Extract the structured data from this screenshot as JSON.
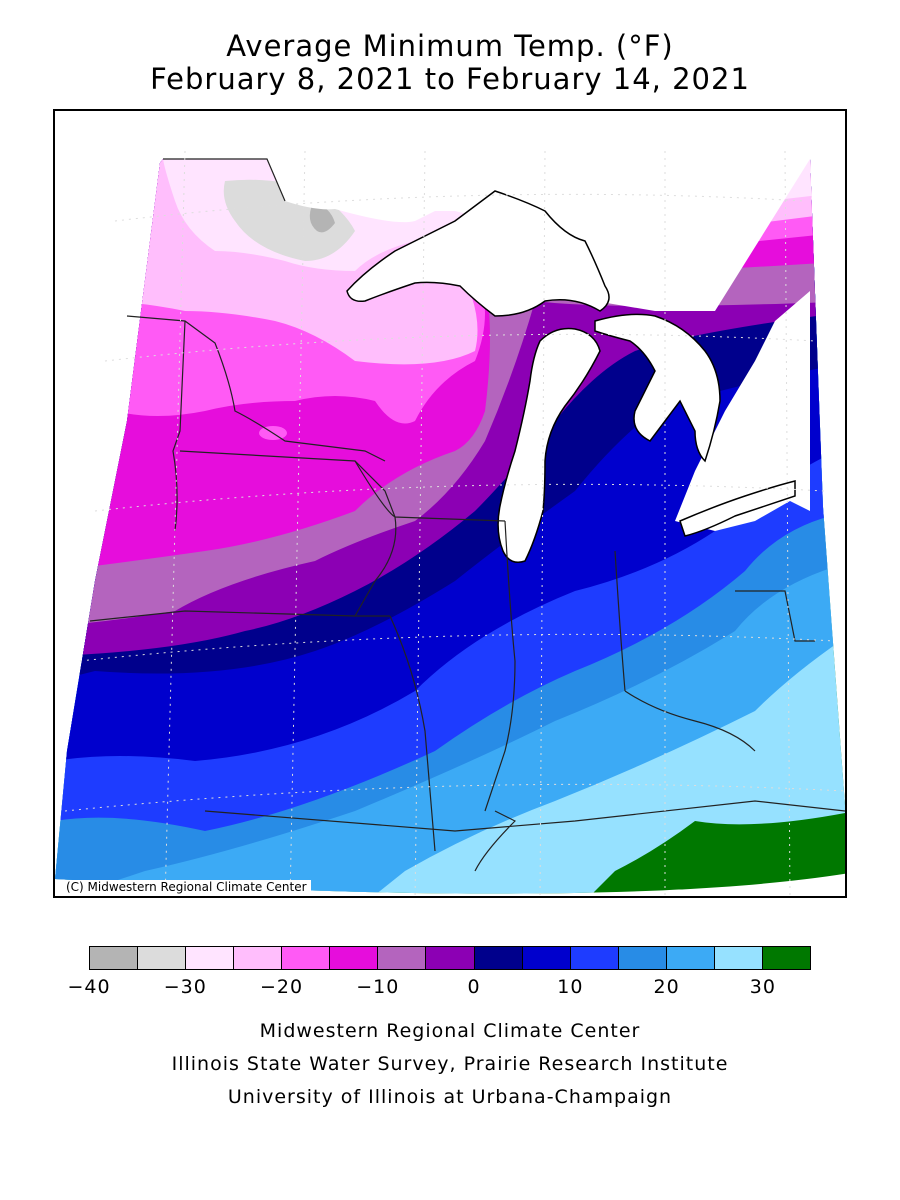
{
  "title": {
    "line1": "Average Minimum Temp. (°F)",
    "line2": "February 8, 2021 to February 14, 2021"
  },
  "map": {
    "region": "Midwest",
    "copyright": "(C) Midwestern Regional Climate Center",
    "colors": {
      "lake": "#ffffff",
      "outline": "#000000",
      "grid": "#dddddd"
    }
  },
  "legend": {
    "colors": [
      "#b4b4b4",
      "#dcdcdc",
      "#ffe4ff",
      "#ffbefc",
      "#ff5af5",
      "#e60ddc",
      "#b464be",
      "#8c00b4",
      "#00008c",
      "#0000cd",
      "#1e3cff",
      "#288ce6",
      "#3caaf5",
      "#96e1ff",
      "#007800"
    ],
    "tick_labels": [
      "-40",
      "-30",
      "-20",
      "-10",
      "0",
      "10",
      "20",
      "30"
    ]
  },
  "credits": [
    "Midwestern Regional Climate Center",
    "Illinois State Water Survey, Prairie Research Institute",
    "University of Illinois at Urbana-Champaign"
  ]
}
